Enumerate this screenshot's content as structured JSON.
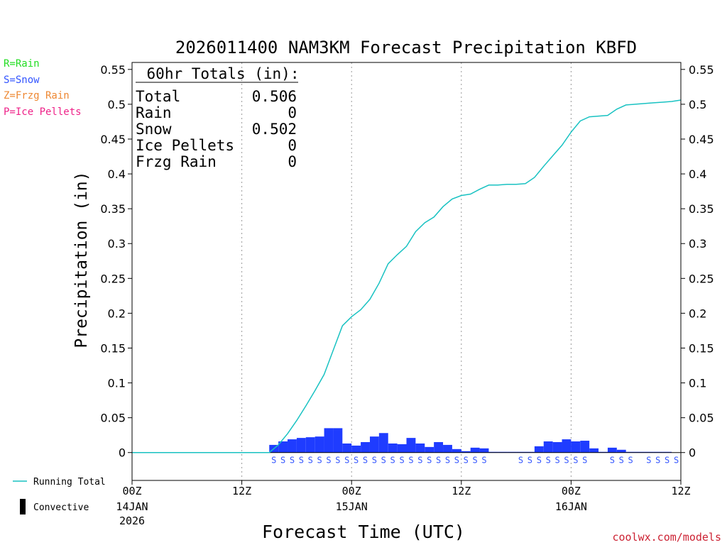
{
  "chart_data": {
    "type": "bar+line",
    "title": "2026011400 NAM3KM Forecast Precipitation KBFD",
    "xlabel": "Forecast Time (UTC)",
    "ylabel": "Precipitation (in)",
    "ylim": [
      -0.04,
      0.56
    ],
    "yticks": [
      "0",
      "0.05",
      "0.1",
      "0.15",
      "0.2",
      "0.25",
      "0.3",
      "0.35",
      "0.4",
      "0.45",
      "0.5",
      "0.55"
    ],
    "x_unit": "forecast hour",
    "xlim": [
      0,
      60
    ],
    "xticks": [
      {
        "hour": 0,
        "label": "00Z",
        "date": "14JAN",
        "year": "2026"
      },
      {
        "hour": 12,
        "label": "12Z",
        "date": "",
        "year": ""
      },
      {
        "hour": 24,
        "label": "00Z",
        "date": "15JAN",
        "year": ""
      },
      {
        "hour": 36,
        "label": "12Z",
        "date": "",
        "year": ""
      },
      {
        "hour": 48,
        "label": "00Z",
        "date": "16JAN",
        "year": ""
      },
      {
        "hour": 60,
        "label": "12Z",
        "date": "",
        "year": ""
      }
    ],
    "vgrid_hours": [
      12,
      24,
      36,
      48
    ],
    "bar_hours": [
      16,
      17,
      18,
      19,
      20,
      21,
      22,
      23,
      24,
      25,
      26,
      27,
      28,
      29,
      30,
      31,
      32,
      33,
      34,
      35,
      36,
      37,
      38,
      39,
      40,
      41,
      42,
      43,
      44,
      45,
      46,
      47,
      48,
      49,
      50,
      51,
      52,
      53,
      54,
      55,
      56,
      57,
      58,
      59
    ],
    "bar_values": [
      0.011,
      0.016,
      0.019,
      0.021,
      0.022,
      0.023,
      0.035,
      0.035,
      0.013,
      0.01,
      0.015,
      0.023,
      0.028,
      0.013,
      0.012,
      0.021,
      0.013,
      0.008,
      0.015,
      0.011,
      0.005,
      0.002,
      0.007,
      0.006,
      0.001,
      0.001,
      0.001,
      0.001,
      0.001,
      0.009,
      0.016,
      0.015,
      0.019,
      0.016,
      0.017,
      0.006,
      0.001,
      0.007,
      0.004,
      0.001,
      0.001,
      0.001,
      0.001,
      0.001
    ],
    "running_total": {
      "hours": [
        0,
        15,
        16,
        17,
        18,
        19,
        20,
        21,
        22,
        23,
        24,
        25,
        26,
        27,
        28,
        29,
        30,
        31,
        32,
        33,
        34,
        35,
        36,
        37,
        38,
        39,
        40,
        41,
        42,
        43,
        44,
        45,
        46,
        47,
        48,
        49,
        50,
        51,
        52,
        53,
        54,
        55,
        56,
        57,
        58,
        59,
        60
      ],
      "values": [
        0,
        0,
        0.011,
        0.027,
        0.046,
        0.067,
        0.089,
        0.112,
        0.147,
        0.182,
        0.195,
        0.205,
        0.22,
        0.243,
        0.271,
        0.284,
        0.296,
        0.317,
        0.33,
        0.338,
        0.353,
        0.364,
        0.369,
        0.371,
        0.378,
        0.384,
        0.384,
        0.385,
        0.385,
        0.386,
        0.395,
        0.411,
        0.426,
        0.441,
        0.46,
        0.476,
        0.482,
        0.483,
        0.484,
        0.493,
        0.499,
        0.5,
        0.501,
        0.502,
        0.503,
        0.504,
        0.506
      ]
    },
    "snow_marker": "S",
    "snow_hours": [
      16,
      17,
      18,
      19,
      20,
      21,
      22,
      23,
      24,
      25,
      26,
      27,
      28,
      29,
      30,
      31,
      32,
      33,
      34,
      35,
      36,
      37,
      38,
      39,
      43,
      44,
      45,
      46,
      47,
      48,
      49,
      50,
      53,
      54,
      55,
      57,
      58,
      59,
      60
    ],
    "totals_box": {
      "heading": "60hr Totals (in):",
      "rows": [
        {
          "label": "Total",
          "value": "0.506"
        },
        {
          "label": "Rain",
          "value": "0"
        },
        {
          "label": "Snow",
          "value": "0.502"
        },
        {
          "label": "Ice Pellets",
          "value": "0"
        },
        {
          "label": "Frzg Rain",
          "value": "0"
        }
      ]
    },
    "type_legend": [
      {
        "text": "R=Rain",
        "color": "#22dd22"
      },
      {
        "text": "S=Snow",
        "color": "#3355ff"
      },
      {
        "text": "Z=Frzg Rain",
        "color": "#ee8833"
      },
      {
        "text": "P=Ice Pellets",
        "color": "#ee2288"
      }
    ],
    "series_legend": [
      {
        "name": "Running Total",
        "color": "#19c2c2"
      },
      {
        "name": "Convective",
        "color": "#000000"
      }
    ],
    "colors": {
      "bars": "#1f3cff",
      "running_total": "#19c2c2",
      "snow_marker": "#3355ff"
    },
    "credit": "coolwx.com/models",
    "credit_color": "#cc2233"
  }
}
